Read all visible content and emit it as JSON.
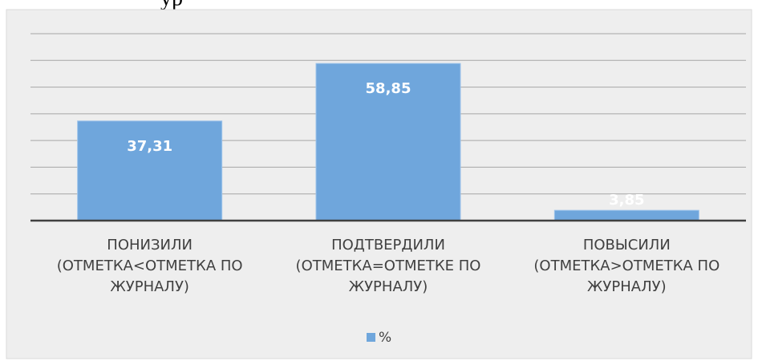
{
  "heading": "ур",
  "chart_data": {
    "type": "bar",
    "categories": [
      "ПОНИЗИЛИ (ОТМЕТКА<ОТМЕТКА ПО ЖУРНАЛУ)",
      "ПОДТВЕРДИЛИ (ОТМЕТКА=ОТМЕТКЕ ПО ЖУРНАЛУ)",
      "ПОВЫСИЛИ (ОТМЕТКА>ОТМЕТКА ПО ЖУРНАЛУ)"
    ],
    "series": [
      {
        "name": "%",
        "color": "#6fa6dc",
        "values": [
          37.31,
          58.85,
          3.85
        ],
        "value_labels": [
          "37,31",
          "58,85",
          "3,85"
        ]
      }
    ],
    "ylim": [
      0,
      70
    ],
    "yticks": [
      0,
      10,
      20,
      30,
      40,
      50,
      60,
      70
    ],
    "grid": true,
    "legend": "bottom"
  }
}
